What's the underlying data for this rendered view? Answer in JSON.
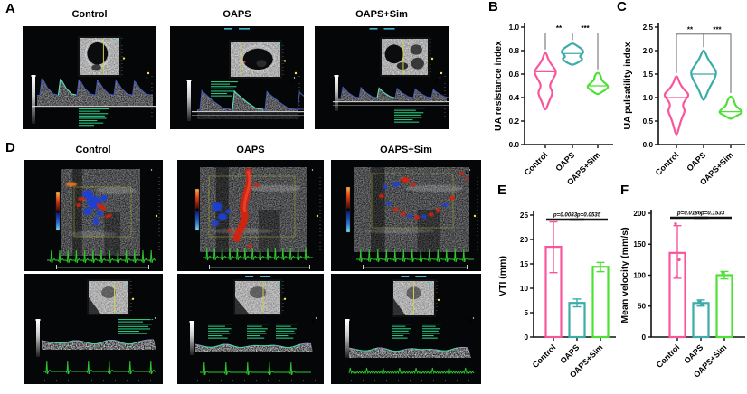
{
  "panels": {
    "A": {
      "label": "A",
      "columns": [
        "Control",
        "OAPS",
        "OAPS+Sim"
      ]
    },
    "B": {
      "label": "B"
    },
    "C": {
      "label": "C"
    },
    "D": {
      "label": "D",
      "columns": [
        "Control",
        "OAPS",
        "OAPS+Sim"
      ]
    },
    "E": {
      "label": "E"
    },
    "F": {
      "label": "F"
    }
  },
  "colors": {
    "control": "#F9559D",
    "oaps": "#3BACA8",
    "oaps_sim": "#4EE135",
    "axis": "#111111"
  },
  "chart_data": [
    {
      "id": "B",
      "type": "violin",
      "title": "",
      "ylabel": "UA resistance index",
      "categories": [
        "Control",
        "OAPS",
        "OAPS+Sim"
      ],
      "ylim": [
        0,
        1.0
      ],
      "grid": false,
      "yticks": [
        {
          "v": 0,
          "t": "0.0"
        },
        {
          "v": 0.2,
          "t": "0.2"
        },
        {
          "v": 0.4,
          "t": "0.4"
        },
        {
          "v": 0.6,
          "t": "0.6"
        },
        {
          "v": 0.8,
          "t": "0.8"
        },
        {
          "v": 1.0,
          "t": "1.0"
        }
      ],
      "series": [
        {
          "name": "Control",
          "color": "#F9559D",
          "median": 0.62,
          "profile": [
            [
              0.3,
              0.08
            ],
            [
              0.36,
              0.28
            ],
            [
              0.41,
              0.52
            ],
            [
              0.45,
              0.62
            ],
            [
              0.5,
              0.34
            ],
            [
              0.55,
              0.6
            ],
            [
              0.62,
              1.0
            ],
            [
              0.68,
              0.52
            ],
            [
              0.73,
              0.22
            ],
            [
              0.78,
              0.08
            ]
          ]
        },
        {
          "name": "OAPS",
          "color": "#3BACA8",
          "median": 0.775,
          "profile": [
            [
              0.68,
              0.1
            ],
            [
              0.705,
              0.6
            ],
            [
              0.73,
              0.9
            ],
            [
              0.75,
              0.55
            ],
            [
              0.78,
              0.95
            ],
            [
              0.81,
              0.85
            ],
            [
              0.84,
              0.4
            ],
            [
              0.86,
              0.1
            ]
          ]
        },
        {
          "name": "OAPS+Sim",
          "color": "#4EE135",
          "median": 0.5,
          "profile": [
            [
              0.43,
              0.1
            ],
            [
              0.46,
              0.55
            ],
            [
              0.49,
              0.95
            ],
            [
              0.52,
              0.65
            ],
            [
              0.55,
              0.3
            ],
            [
              0.58,
              0.28
            ],
            [
              0.61,
              0.1
            ]
          ]
        }
      ],
      "significance": [
        {
          "from": 0,
          "to": 1,
          "label": "**",
          "y": 0.95
        },
        {
          "from": 1,
          "to": 2,
          "label": "***",
          "y": 0.95
        }
      ]
    },
    {
      "id": "C",
      "type": "violin",
      "title": "",
      "ylabel": "UA pulsatility index",
      "categories": [
        "Control",
        "OAPS",
        "OAPS+Sim"
      ],
      "ylim": [
        0,
        2.5
      ],
      "grid": false,
      "yticks": [
        {
          "v": 0,
          "t": "0.0"
        },
        {
          "v": 0.5,
          "t": "0.5"
        },
        {
          "v": 1.0,
          "t": "1.0"
        },
        {
          "v": 1.5,
          "t": "1.5"
        },
        {
          "v": 2.0,
          "t": "2.0"
        },
        {
          "v": 2.5,
          "t": "2.5"
        }
      ],
      "series": [
        {
          "name": "Control",
          "color": "#F9559D",
          "median": 1.0,
          "profile": [
            [
              0.22,
              0.07
            ],
            [
              0.42,
              0.25
            ],
            [
              0.58,
              0.45
            ],
            [
              0.72,
              0.7
            ],
            [
              0.85,
              0.45
            ],
            [
              0.98,
              0.8
            ],
            [
              1.07,
              1.0
            ],
            [
              1.18,
              0.55
            ],
            [
              1.32,
              0.22
            ],
            [
              1.45,
              0.08
            ]
          ]
        },
        {
          "name": "OAPS",
          "color": "#3BACA8",
          "median": 1.5,
          "profile": [
            [
              0.95,
              0.08
            ],
            [
              1.15,
              0.35
            ],
            [
              1.32,
              0.7
            ],
            [
              1.45,
              0.95
            ],
            [
              1.56,
              1.0
            ],
            [
              1.68,
              0.7
            ],
            [
              1.84,
              0.3
            ],
            [
              2.0,
              0.08
            ]
          ]
        },
        {
          "name": "OAPS+Sim",
          "color": "#4EE135",
          "median": 0.7,
          "profile": [
            [
              0.55,
              0.1
            ],
            [
              0.62,
              0.5
            ],
            [
              0.68,
              0.95
            ],
            [
              0.75,
              0.75
            ],
            [
              0.83,
              0.35
            ],
            [
              0.93,
              0.28
            ],
            [
              1.02,
              0.08
            ]
          ]
        }
      ],
      "significance": [
        {
          "from": 0,
          "to": 1,
          "label": "**",
          "y": 2.35
        },
        {
          "from": 1,
          "to": 2,
          "label": "***",
          "y": 2.35
        }
      ]
    },
    {
      "id": "E",
      "type": "bar",
      "title": "",
      "ylabel": "VTI (mm)",
      "categories": [
        "Control",
        "OAPS",
        "OAPS+Sim"
      ],
      "ylim": [
        0,
        25
      ],
      "grid": false,
      "yticks": [
        {
          "v": 0,
          "t": "0"
        },
        {
          "v": 5,
          "t": "5"
        },
        {
          "v": 10,
          "t": "10"
        },
        {
          "v": 15,
          "t": "15"
        },
        {
          "v": 20,
          "t": "20"
        },
        {
          "v": 25,
          "t": "25"
        }
      ],
      "series": [
        {
          "name": "Control",
          "color": "#F9559D",
          "value": 18.5,
          "err_low": 13.2,
          "err_high": 23.6,
          "points": []
        },
        {
          "name": "OAPS",
          "color": "#3BACA8",
          "value": 7.0,
          "err_low": 6.2,
          "err_high": 7.8,
          "points": []
        },
        {
          "name": "OAPS+Sim",
          "color": "#4EE135",
          "value": 14.4,
          "err_low": 13.4,
          "err_high": 15.3,
          "points": []
        }
      ],
      "annotations": [
        {
          "from": 0,
          "to": 1,
          "text": "p=0.0083"
        },
        {
          "from": 1,
          "to": 2,
          "text": "p=0.0535"
        }
      ]
    },
    {
      "id": "F",
      "type": "bar",
      "title": "",
      "ylabel": "Mean velocity (mm/s)",
      "categories": [
        "Control",
        "OAPS",
        "OAPS+Sim"
      ],
      "ylim": [
        0,
        200
      ],
      "grid": false,
      "yticks": [
        {
          "v": 0,
          "t": "0"
        },
        {
          "v": 50,
          "t": "50"
        },
        {
          "v": 100,
          "t": "100"
        },
        {
          "v": 150,
          "t": "150"
        },
        {
          "v": 200,
          "t": "200"
        }
      ],
      "series": [
        {
          "name": "Control",
          "color": "#F9559D",
          "value": 136,
          "err_low": 95,
          "err_high": 180,
          "points": [
            183,
            125,
            97
          ]
        },
        {
          "name": "OAPS",
          "color": "#3BACA8",
          "value": 55,
          "err_low": 50,
          "err_high": 60,
          "points": [
            58,
            53
          ]
        },
        {
          "name": "OAPS+Sim",
          "color": "#4EE135",
          "value": 100,
          "err_low": 94,
          "err_high": 106,
          "points": [
            104
          ]
        }
      ],
      "annotations": [
        {
          "from": 0,
          "to": 1,
          "text": "p=0.0186"
        },
        {
          "from": 1,
          "to": 2,
          "text": "p=0.1533"
        }
      ]
    }
  ]
}
